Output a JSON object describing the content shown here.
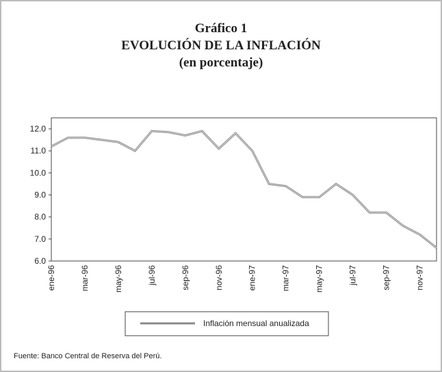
{
  "chart_data": {
    "type": "line",
    "title": "Gráfico 1",
    "subtitle": "EVOLUCIÓN DE LA INFLACIÓN",
    "unit_label": "(en porcentaje)",
    "source": "Fuente: Banco Central de Reserva del Perú.",
    "categories": [
      "ene-96",
      null,
      "mar-96",
      null,
      "may-96",
      null,
      "jul-96",
      null,
      "sep-96",
      null,
      "nov-96",
      null,
      "ene-97",
      null,
      "mar-97",
      null,
      "may-97",
      null,
      "jul-97",
      null,
      "sep-97",
      null,
      "nov-97",
      null
    ],
    "series": [
      {
        "name": "Inflación mensual anualizada",
        "color": "#8a8a8a",
        "values": [
          11.2,
          11.6,
          11.6,
          11.5,
          11.4,
          11.0,
          11.9,
          11.85,
          11.7,
          11.9,
          11.1,
          11.8,
          11.0,
          9.5,
          9.4,
          8.9,
          8.9,
          9.5,
          9.0,
          8.2,
          8.2,
          7.6,
          7.2,
          6.6
        ]
      }
    ],
    "ylim": [
      6,
      12.5
    ],
    "yticks": [
      {
        "value": 6,
        "label": "6.0"
      },
      {
        "value": 7,
        "label": "7.0"
      },
      {
        "value": 8,
        "label": "8.0"
      },
      {
        "value": 9,
        "label": "9.0"
      },
      {
        "value": 10,
        "label": "10.0"
      },
      {
        "value": 11,
        "label": "11.0"
      },
      {
        "value": 12,
        "label": "12.0"
      }
    ],
    "legend": "bottom"
  }
}
